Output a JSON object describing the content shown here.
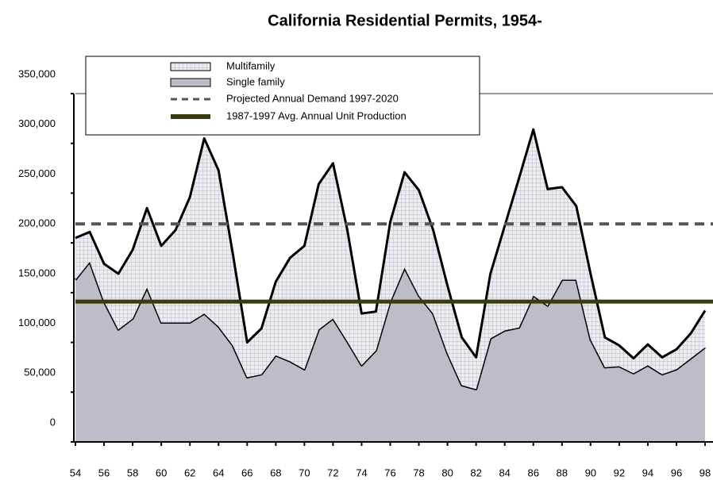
{
  "chart_data": {
    "type": "stacked_area",
    "title": "California Residential Permits, 1954-",
    "x": [
      54,
      55,
      56,
      57,
      58,
      59,
      60,
      61,
      62,
      63,
      64,
      65,
      66,
      67,
      68,
      69,
      70,
      71,
      72,
      73,
      74,
      75,
      76,
      77,
      78,
      79,
      80,
      81,
      82,
      83,
      84,
      85,
      86,
      87,
      88,
      89,
      90,
      91,
      92,
      93,
      94,
      95,
      96,
      97,
      98
    ],
    "series": [
      {
        "name": "Multifamily",
        "color": "#e4e4ec",
        "values": [
          42000,
          30000,
          38000,
          56000,
          69000,
          80000,
          77000,
          93000,
          126000,
          176000,
          157000,
          92000,
          35000,
          46000,
          74000,
          104000,
          124000,
          146000,
          156000,
          112000,
          52000,
          39000,
          80000,
          96000,
          106000,
          84000,
          68000,
          48000,
          32000,
          65000,
          105000,
          150000,
          167000,
          117000,
          93000,
          74000,
          66000,
          30000,
          21000,
          15000,
          21000,
          17000,
          20000,
          25000,
          37000
        ]
      },
      {
        "name": "Single family",
        "color": "#bdbdc8",
        "values": [
          163000,
          181000,
          141000,
          113000,
          124000,
          155000,
          120000,
          120000,
          120000,
          129000,
          116000,
          97000,
          65000,
          68000,
          87000,
          81000,
          73000,
          113000,
          124000,
          101000,
          77000,
          92000,
          141000,
          175000,
          147000,
          129000,
          89000,
          57000,
          53000,
          104000,
          112000,
          115000,
          147000,
          137000,
          163000,
          163000,
          103000,
          75000,
          76000,
          69000,
          77000,
          68000,
          73000,
          84000,
          95000
        ]
      }
    ],
    "reference_lines": [
      {
        "name": "Projected Annual Demand 1997-2020",
        "value": 219000,
        "color": "#555555",
        "style": "dashed"
      },
      {
        "name": "1987-1997 Avg. Annual Unit Production",
        "value": 141000,
        "color": "#3b3b10",
        "style": "solid"
      }
    ],
    "xlim": [
      54,
      98
    ],
    "xticks": [
      54,
      56,
      58,
      60,
      62,
      64,
      66,
      68,
      70,
      72,
      74,
      76,
      78,
      80,
      82,
      84,
      86,
      88,
      90,
      92,
      94,
      96,
      98
    ],
    "ylim": [
      0,
      350000
    ],
    "yticks": [
      0,
      {
        "value": 50000,
        "label": "50,000"
      },
      {
        "value": 100000,
        "label": "100,000"
      },
      {
        "value": 150000,
        "label": "150,000"
      },
      {
        "value": 200000,
        "label": "200,000"
      },
      {
        "value": 250000,
        "label": "250,000"
      },
      {
        "value": 300000,
        "label": "300,000"
      },
      {
        "value": 350000,
        "label": "350,000"
      }
    ],
    "legend": "top-left"
  }
}
